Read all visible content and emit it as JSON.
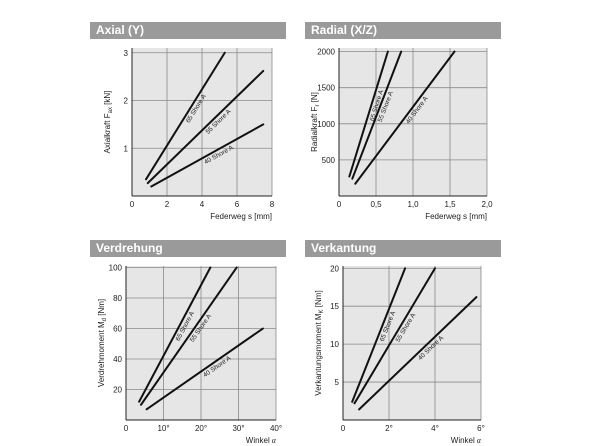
{
  "chart_data": [
    {
      "type": "line",
      "title": "Axial (Y)",
      "xlabel": "Federweg s [mm]",
      "ylabel": "Axialkraft F",
      "ylabel_sub": "ax",
      "ylabel_unit": "[kN]",
      "xlim": [
        0,
        8
      ],
      "ylim": [
        0,
        3.1
      ],
      "xticks": [
        0,
        2,
        4,
        6,
        8
      ],
      "xtick_labels": [
        "0",
        "2",
        "4",
        "6",
        "8"
      ],
      "yticks": [
        1,
        2,
        3
      ],
      "ytick_labels": [
        "1",
        "2",
        "3"
      ],
      "grid": true,
      "series": [
        {
          "name": "65 Shore A",
          "x": [
            0.8,
            5.3
          ],
          "y": [
            0.35,
            3.0
          ]
        },
        {
          "name": "55 Shore A",
          "x": [
            0.9,
            7.5
          ],
          "y": [
            0.27,
            2.62
          ]
        },
        {
          "name": "40 Shore A",
          "x": [
            1.1,
            7.5
          ],
          "y": [
            0.2,
            1.5
          ]
        }
      ]
    },
    {
      "type": "line",
      "title": "Radial (X/Z)",
      "xlabel": "Federweg s [mm]",
      "ylabel": "Radialkraft F",
      "ylabel_sub": "r",
      "ylabel_unit": "[N]",
      "xlim": [
        0,
        2.0
      ],
      "ylim": [
        0,
        2050
      ],
      "xticks": [
        0,
        0.5,
        1.0,
        1.5,
        2.0
      ],
      "xtick_labels": [
        "0",
        "0,5",
        "1,0",
        "1,5",
        "2,0"
      ],
      "yticks": [
        500,
        1000,
        1500,
        2000
      ],
      "ytick_labels": [
        "500",
        "1000",
        "1500",
        "2000"
      ],
      "grid": true,
      "series": [
        {
          "name": "65 Shore A",
          "x": [
            0.14,
            0.66
          ],
          "y": [
            270,
            2000
          ]
        },
        {
          "name": "55 Shore A",
          "x": [
            0.18,
            0.84
          ],
          "y": [
            240,
            2000
          ]
        },
        {
          "name": "40 Shore A",
          "x": [
            0.22,
            1.56
          ],
          "y": [
            170,
            2000
          ]
        }
      ]
    },
    {
      "type": "line",
      "title": "Verdrehung",
      "xlabel": "Winkel",
      "xlabel_symbol": "α",
      "ylabel": "Verdrehmoment M",
      "ylabel_sub": "d",
      "ylabel_unit": "[Nm]",
      "xlim": [
        0,
        40
      ],
      "ylim": [
        0,
        101
      ],
      "xticks": [
        0,
        10,
        20,
        30,
        40
      ],
      "xtick_labels": [
        "0",
        "10°",
        "20°",
        "30°",
        "40°"
      ],
      "yticks": [
        20,
        40,
        60,
        80,
        100
      ],
      "ytick_labels": [
        "20",
        "40",
        "60",
        "80",
        "100"
      ],
      "grid": true,
      "series": [
        {
          "name": "65 Shore A",
          "x": [
            3.5,
            22.5
          ],
          "y": [
            12,
            100
          ]
        },
        {
          "name": "55 Shore A",
          "x": [
            4.0,
            29.5
          ],
          "y": [
            10,
            100
          ]
        },
        {
          "name": "40 Shore A",
          "x": [
            5.5,
            36.5
          ],
          "y": [
            7,
            60
          ]
        }
      ]
    },
    {
      "type": "line",
      "title": "Verkantung",
      "xlabel": "Winkel",
      "xlabel_symbol": "α",
      "ylabel": "Verkantungsmoment M",
      "ylabel_sub": "K",
      "ylabel_unit": "[Nm]",
      "xlim": [
        0,
        6
      ],
      "ylim": [
        0,
        20.3
      ],
      "xticks": [
        0,
        2,
        4,
        6
      ],
      "xtick_labels": [
        "0",
        "2°",
        "4°",
        "6°"
      ],
      "yticks": [
        5,
        10,
        15,
        20
      ],
      "ytick_labels": [
        "5",
        "10",
        "15",
        "20"
      ],
      "grid": true,
      "series": [
        {
          "name": "65 Shore A",
          "x": [
            0.4,
            2.7
          ],
          "y": [
            2.4,
            20
          ]
        },
        {
          "name": "55 Shore A",
          "x": [
            0.5,
            4.0
          ],
          "y": [
            2.2,
            20
          ]
        },
        {
          "name": "40 Shore A",
          "x": [
            0.7,
            5.8
          ],
          "y": [
            1.4,
            16.2
          ]
        }
      ]
    }
  ]
}
